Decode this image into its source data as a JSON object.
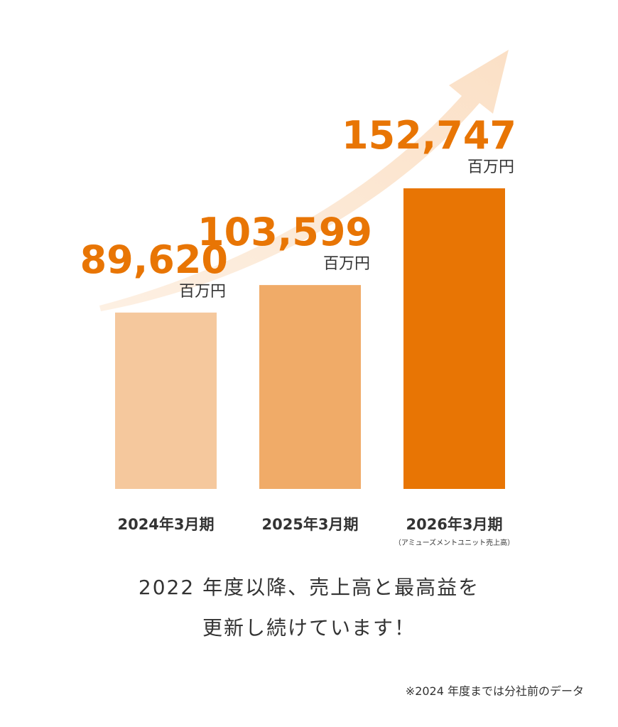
{
  "chart_data": {
    "type": "bar",
    "categories": [
      "2024年3月期",
      "2025年3月期",
      "2026年3月期"
    ],
    "category_notes": [
      null,
      null,
      "（アミューズメントユニット売上高）"
    ],
    "values": [
      89620,
      103599,
      152747
    ],
    "value_labels": [
      "89,620",
      "103,599",
      "152,747"
    ],
    "unit_label": "百万円",
    "colors": [
      "#f5c89d",
      "#f0ab68",
      "#e87504"
    ]
  },
  "caption": [
    "2022 年度以降、売上高と最高益を",
    "更新し続けています！"
  ],
  "footnote": "※2024 年度までは分社前のデータ"
}
